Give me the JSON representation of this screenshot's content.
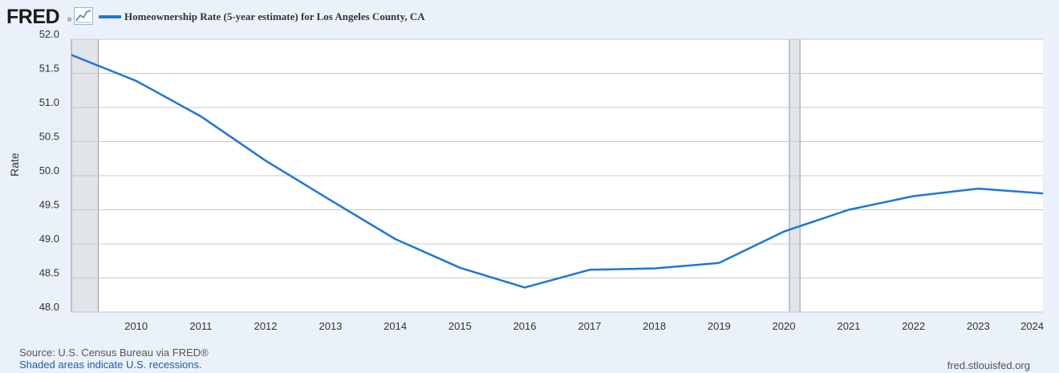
{
  "header": {
    "logo_text": "FRED",
    "logo_reg": "®",
    "logo_icon": "line-chart-icon",
    "legend_label": "Homeownership Rate (5-year estimate) for Los Angeles County, CA",
    "legend_color": "#1f77d4"
  },
  "chart_data": {
    "type": "line",
    "title": "",
    "xlabel": "",
    "ylabel": "Rate",
    "x_ticks": [
      "2010",
      "2011",
      "2012",
      "2013",
      "2014",
      "2015",
      "2016",
      "2017",
      "2018",
      "2019",
      "2020",
      "2021",
      "2022",
      "2023",
      "2024"
    ],
    "y_ticks": [
      "52.0",
      "51.5",
      "51.0",
      "50.5",
      "50.0",
      "49.5",
      "49.0",
      "48.5",
      "48.0"
    ],
    "ylim": [
      48.0,
      52.0
    ],
    "xlim": [
      "2009-01-01",
      "2024-01-01"
    ],
    "grid": "horizontal",
    "series": [
      {
        "name": "Homeownership Rate (5-year estimate) for Los Angeles County, CA",
        "color": "#1f77d4",
        "x": [
          "2009",
          "2010",
          "2011",
          "2012",
          "2013",
          "2014",
          "2015",
          "2016",
          "2017",
          "2018",
          "2019",
          "2020",
          "2021",
          "2022",
          "2023",
          "2024"
        ],
        "values": [
          51.77,
          51.39,
          50.87,
          50.22,
          49.64,
          49.07,
          48.65,
          48.36,
          48.62,
          48.64,
          48.72,
          49.18,
          49.5,
          49.7,
          49.81,
          49.74
        ]
      }
    ],
    "recessions": [
      {
        "start": "2009-01-01",
        "end": "2009-06-01"
      },
      {
        "start": "2020-02-01",
        "end": "2020-04-01"
      }
    ],
    "recession_color": "#e1e4e8"
  },
  "footer": {
    "source": "Source: U.S. Census Bureau via FRED®",
    "note": "Shaded areas indicate U.S. recessions.",
    "site": "fred.stlouisfed.org"
  }
}
